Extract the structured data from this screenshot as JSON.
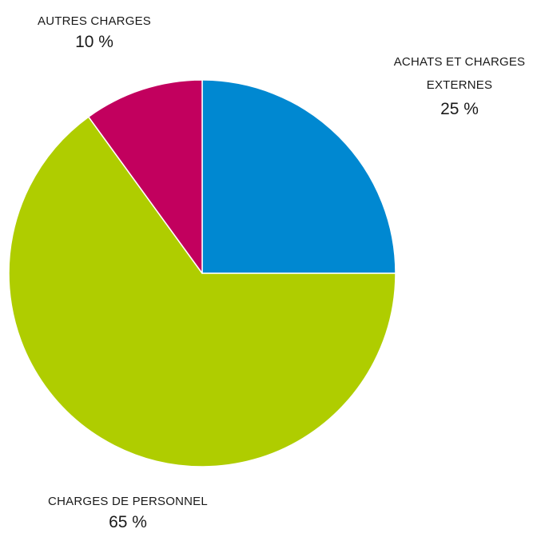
{
  "chart_data": {
    "type": "pie",
    "slices": [
      {
        "label": "ACHATS ET CHARGES EXTERNES",
        "value": 25,
        "value_text": "25 %",
        "color": "#0088d1"
      },
      {
        "label": "CHARGES DE PERSONNEL",
        "value": 65,
        "value_text": "65 %",
        "color": "#afcd00"
      },
      {
        "label": "AUTRES CHARGES",
        "value": 10,
        "value_text": "10 %",
        "color": "#c2005e"
      }
    ],
    "start_angle": "12 o'clock",
    "direction": "clockwise",
    "title": "",
    "legend": "none"
  },
  "labels": {
    "achats_line1": "ACHATS ET CHARGES",
    "achats_line2": "EXTERNES",
    "achats_pct": "25 %",
    "personnel_name": "CHARGES DE PERSONNEL",
    "personnel_pct": "65 %",
    "autres_name": "AUTRES CHARGES",
    "autres_pct": "10 %"
  }
}
